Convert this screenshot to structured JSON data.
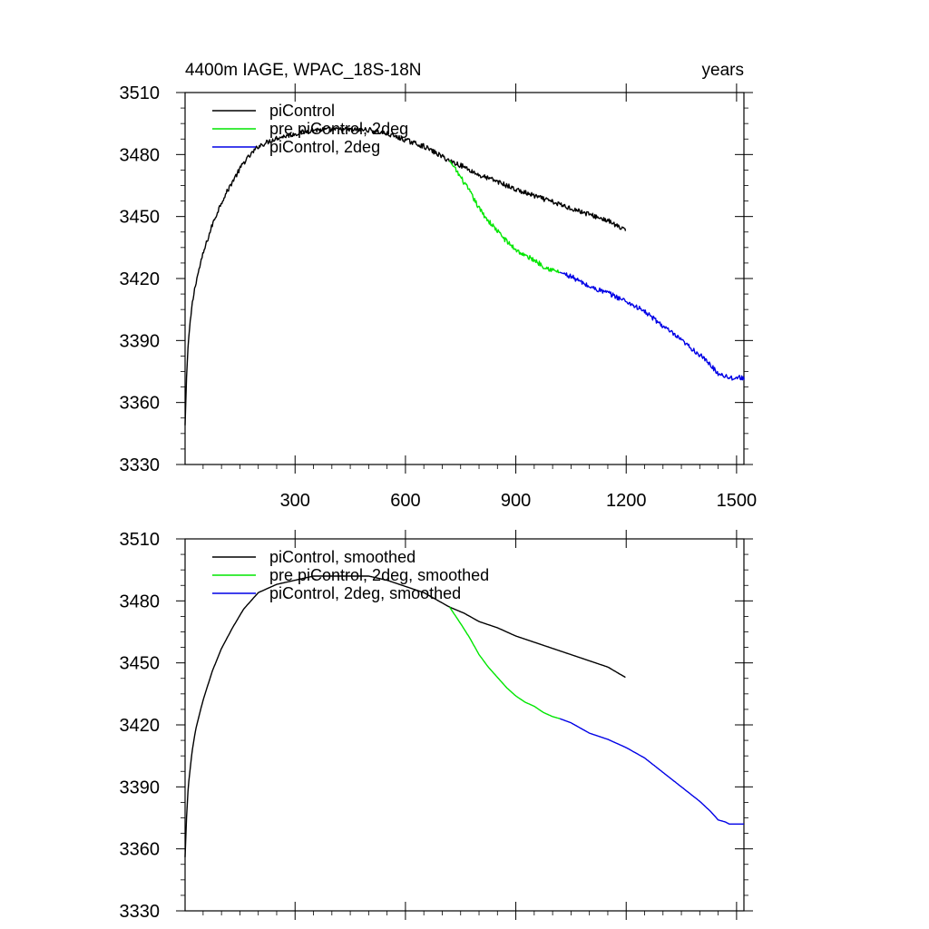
{
  "header": {
    "left_title": "4400m IAGE, WPAC_18S-18N",
    "right_title": "years"
  },
  "chart_data": [
    {
      "type": "line",
      "title": "4400m IAGE, WPAC_18S-18N",
      "xlabel": "years",
      "ylabel": "",
      "xlim": [
        1,
        1520
      ],
      "ylim": [
        3330,
        3510
      ],
      "x_ticks": [
        300,
        600,
        900,
        1200,
        1500
      ],
      "y_ticks": [
        3330,
        3360,
        3390,
        3420,
        3450,
        3480,
        3510
      ],
      "x_tick_labels": [
        "300",
        "600",
        "900",
        "1200",
        "1500"
      ],
      "y_tick_labels": [
        "3330",
        "3360",
        "3390",
        "3420",
        "3450",
        "3480",
        "3510"
      ],
      "grid": false,
      "legend_position": "top-left",
      "noise": 1.2,
      "series": [
        {
          "name": "piControl",
          "color": "#000000",
          "x": [
            1,
            5,
            10,
            20,
            30,
            50,
            75,
            100,
            130,
            160,
            200,
            250,
            300,
            350,
            400,
            450,
            500,
            550,
            600,
            650,
            700,
            720,
            760,
            800,
            850,
            900,
            950,
            1000,
            1050,
            1100,
            1150,
            1198
          ],
          "y": [
            3349,
            3372,
            3390,
            3407,
            3418,
            3432,
            3446,
            3457,
            3467,
            3476,
            3484,
            3488,
            3490,
            3492,
            3492,
            3492,
            3492,
            3490,
            3487,
            3484,
            3479,
            3477,
            3474,
            3470,
            3467,
            3463,
            3460,
            3457,
            3454,
            3451,
            3448,
            3443
          ]
        },
        {
          "name": "pre piControl, 2deg",
          "color": "#00e600",
          "x": [
            720,
            750,
            775,
            800,
            825,
            850,
            875,
            900,
            925,
            950,
            975,
            1000,
            1020
          ],
          "y": [
            3477,
            3469,
            3462,
            3454,
            3448,
            3443,
            3438,
            3434,
            3431,
            3429,
            3426,
            3424,
            3423
          ]
        },
        {
          "name": "piControl, 2deg",
          "color": "#0000e6",
          "x": [
            1020,
            1050,
            1100,
            1150,
            1200,
            1250,
            1300,
            1350,
            1400,
            1430,
            1450,
            1470,
            1480,
            1500,
            1520
          ],
          "y": [
            3423,
            3421,
            3416,
            3413,
            3409,
            3404,
            3397,
            3390,
            3383,
            3378,
            3374,
            3373,
            3372,
            3372,
            3372
          ]
        }
      ]
    },
    {
      "type": "line",
      "title": "",
      "xlabel": "",
      "ylabel": "",
      "xlim": [
        1,
        1520
      ],
      "ylim": [
        3330,
        3510
      ],
      "x_ticks": [
        300,
        600,
        900,
        1200,
        1500
      ],
      "y_ticks": [
        3330,
        3360,
        3390,
        3420,
        3450,
        3480,
        3510
      ],
      "x_tick_labels": [],
      "y_tick_labels": [
        "3330",
        "3360",
        "3390",
        "3420",
        "3450",
        "3480",
        "3510"
      ],
      "grid": false,
      "legend_position": "top-left",
      "noise": 0,
      "series": [
        {
          "name": "piControl, smoothed",
          "color": "#000000",
          "x": [
            1,
            5,
            10,
            20,
            30,
            50,
            75,
            100,
            130,
            160,
            200,
            250,
            300,
            350,
            400,
            450,
            500,
            550,
            600,
            650,
            700,
            720,
            760,
            800,
            850,
            900,
            950,
            1000,
            1050,
            1100,
            1150,
            1198
          ],
          "y": [
            3356,
            3375,
            3391,
            3407,
            3418,
            3432,
            3446,
            3457,
            3467,
            3476,
            3484,
            3488,
            3490,
            3492,
            3492,
            3492,
            3492,
            3490,
            3487,
            3484,
            3479,
            3477,
            3474,
            3470,
            3467,
            3463,
            3460,
            3457,
            3454,
            3451,
            3448,
            3443
          ]
        },
        {
          "name": "pre piControl, 2deg, smoothed",
          "color": "#00e600",
          "x": [
            720,
            750,
            775,
            800,
            825,
            850,
            875,
            900,
            925,
            950,
            975,
            1000,
            1020
          ],
          "y": [
            3477,
            3469,
            3462,
            3454,
            3448,
            3443,
            3438,
            3434,
            3431,
            3429,
            3426,
            3424,
            3423
          ]
        },
        {
          "name": "piControl, 2deg, smoothed",
          "color": "#0000e6",
          "x": [
            1020,
            1050,
            1100,
            1150,
            1200,
            1250,
            1300,
            1350,
            1400,
            1430,
            1450,
            1470,
            1480,
            1500,
            1520
          ],
          "y": [
            3423,
            3421,
            3416,
            3413,
            3409,
            3404,
            3397,
            3390,
            3383,
            3378,
            3374,
            3373,
            3372,
            3372,
            3372
          ]
        }
      ]
    }
  ]
}
